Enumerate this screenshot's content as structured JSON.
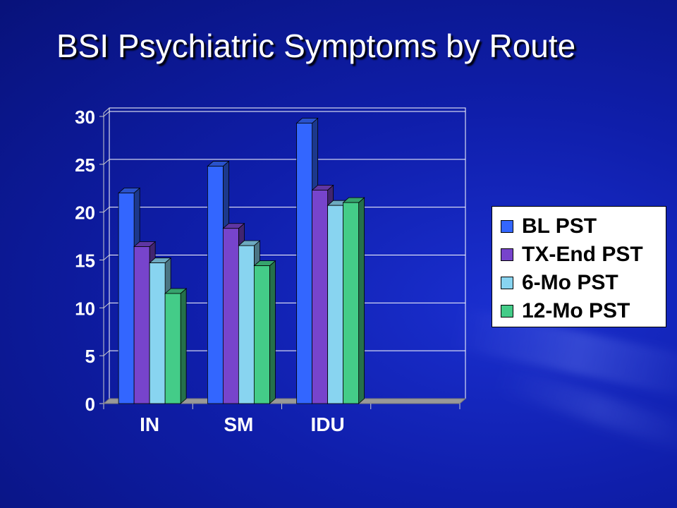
{
  "colors": {
    "bl": "#3366ff",
    "tx": "#7744cc",
    "six": "#88d4f0",
    "twelve": "#44cc88"
  },
  "chart_data": {
    "type": "bar",
    "title": "BSI Psychiatric Symptoms by Route",
    "categories": [
      "IN",
      "SM",
      "IDU"
    ],
    "series": [
      {
        "name": "BL PST",
        "values": [
          22,
          24.8,
          29.3
        ]
      },
      {
        "name": "TX-End PST",
        "values": [
          16.4,
          18.3,
          22.3
        ]
      },
      {
        "name": "6-Mo PST",
        "values": [
          14.7,
          16.5,
          20.7
        ]
      },
      {
        "name": "12-Mo PST",
        "values": [
          11.5,
          14.4,
          21
        ]
      }
    ],
    "ylim": [
      0,
      30
    ],
    "yticks": [
      "0",
      "5",
      "10",
      "15",
      "20",
      "25",
      "30"
    ],
    "grid": true,
    "legend_position": "right"
  }
}
